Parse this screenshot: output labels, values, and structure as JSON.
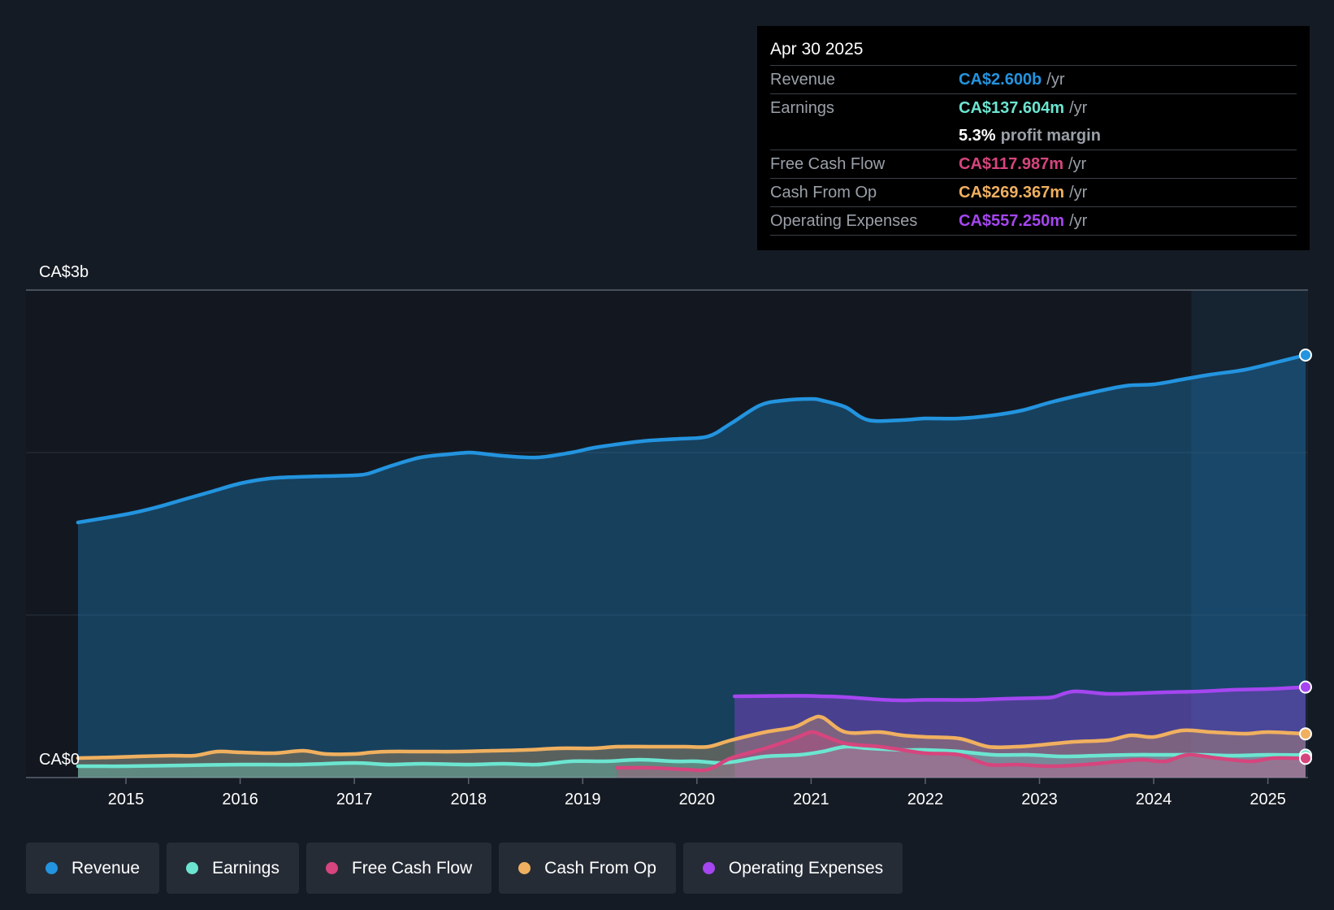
{
  "tooltip": {
    "date": "Apr 30 2025",
    "unit": "/yr",
    "rows": {
      "revenue": {
        "label": "Revenue",
        "value": "CA$2.600b",
        "color": "#2394df"
      },
      "earnings": {
        "label": "Earnings",
        "value": "CA$137.604m",
        "color": "#6ce5d0"
      },
      "margin": {
        "pct": "5.3%",
        "text": "profit margin"
      },
      "fcf": {
        "label": "Free Cash Flow",
        "value": "CA$117.987m",
        "color": "#d6457d"
      },
      "cfo": {
        "label": "Cash From Op",
        "value": "CA$269.367m",
        "color": "#f0b05f"
      },
      "opex": {
        "label": "Operating Expenses",
        "value": "CA$557.250m",
        "color": "#a546f0"
      }
    }
  },
  "legend": [
    {
      "key": "revenue",
      "label": "Revenue",
      "color": "#2394df"
    },
    {
      "key": "earnings",
      "label": "Earnings",
      "color": "#6ce5d0"
    },
    {
      "key": "fcf",
      "label": "Free Cash Flow",
      "color": "#d6457d"
    },
    {
      "key": "cfo",
      "label": "Cash From Op",
      "color": "#f0b05f"
    },
    {
      "key": "opex",
      "label": "Operating Expenses",
      "color": "#a546f0"
    }
  ],
  "chart_data": {
    "type": "area",
    "title": "",
    "xlabel": "",
    "ylabel": "",
    "unit": "CA$b",
    "ylim": [
      0,
      3
    ],
    "xlim": [
      2014.58,
      2025.33
    ],
    "y_tick_labels": [
      {
        "value": 3,
        "label": "CA$3b"
      },
      {
        "value": 0,
        "label": "CA$0"
      }
    ],
    "gridlines": [
      0,
      1,
      2,
      3
    ],
    "x_ticks": [
      2015,
      2016,
      2017,
      2018,
      2019,
      2020,
      2021,
      2022,
      2023,
      2024,
      2025
    ],
    "forecast_start": 2024.33,
    "series": [
      {
        "key": "revenue",
        "name": "Revenue",
        "color": "#2394df",
        "fill": true,
        "x": [
          2014.58,
          2015.0,
          2015.25,
          2015.5,
          2015.75,
          2016.0,
          2016.25,
          2016.5,
          2016.75,
          2017.0,
          2017.12,
          2017.33,
          2017.58,
          2017.83,
          2018.0,
          2018.1,
          2018.3,
          2018.6,
          2018.9,
          2019.1,
          2019.4,
          2019.6,
          2019.85,
          2020.1,
          2020.3,
          2020.55,
          2020.75,
          2021.0,
          2021.1,
          2021.3,
          2021.5,
          2021.8,
          2022.0,
          2022.3,
          2022.6,
          2022.85,
          2023.1,
          2023.4,
          2023.75,
          2024.0,
          2024.25,
          2024.5,
          2024.8,
          2025.1,
          2025.33
        ],
        "y": [
          1.57,
          1.62,
          1.66,
          1.71,
          1.76,
          1.81,
          1.84,
          1.85,
          1.855,
          1.86,
          1.87,
          1.92,
          1.97,
          1.99,
          2.0,
          1.995,
          1.98,
          1.97,
          2.0,
          2.03,
          2.06,
          2.075,
          2.085,
          2.1,
          2.18,
          2.29,
          2.32,
          2.33,
          2.32,
          2.28,
          2.2,
          2.2,
          2.21,
          2.21,
          2.23,
          2.26,
          2.31,
          2.36,
          2.41,
          2.42,
          2.45,
          2.48,
          2.51,
          2.56,
          2.6
        ]
      },
      {
        "key": "opex",
        "name": "Operating Expenses",
        "color": "#a546f0",
        "fill": true,
        "x": [
          2020.33,
          2020.6,
          2020.9,
          2021.1,
          2021.3,
          2021.6,
          2021.8,
          2022.0,
          2022.4,
          2022.7,
          2023.0,
          2023.12,
          2023.3,
          2023.6,
          2023.9,
          2024.1,
          2024.4,
          2024.7,
          2025.0,
          2025.33
        ],
        "y": [
          0.5,
          0.502,
          0.503,
          0.5,
          0.495,
          0.48,
          0.475,
          0.478,
          0.478,
          0.485,
          0.49,
          0.495,
          0.53,
          0.515,
          0.52,
          0.525,
          0.53,
          0.54,
          0.545,
          0.557
        ]
      },
      {
        "key": "cfo",
        "name": "Cash From Op",
        "color": "#f0b05f",
        "fill": true,
        "x": [
          2014.58,
          2014.9,
          2015.1,
          2015.4,
          2015.6,
          2015.8,
          2016.0,
          2016.3,
          2016.55,
          2016.75,
          2017.0,
          2017.15,
          2017.3,
          2017.6,
          2017.9,
          2018.2,
          2018.5,
          2018.8,
          2019.1,
          2019.3,
          2019.6,
          2019.9,
          2020.1,
          2020.3,
          2020.6,
          2020.85,
          2021.0,
          2021.1,
          2021.3,
          2021.6,
          2021.8,
          2022.0,
          2022.3,
          2022.55,
          2022.8,
          2023.0,
          2023.3,
          2023.6,
          2023.8,
          2024.0,
          2024.25,
          2024.5,
          2024.8,
          2025.0,
          2025.33
        ],
        "y": [
          0.12,
          0.125,
          0.13,
          0.135,
          0.135,
          0.16,
          0.155,
          0.15,
          0.165,
          0.145,
          0.145,
          0.155,
          0.16,
          0.16,
          0.16,
          0.165,
          0.17,
          0.18,
          0.18,
          0.19,
          0.19,
          0.19,
          0.19,
          0.23,
          0.28,
          0.31,
          0.36,
          0.37,
          0.28,
          0.28,
          0.26,
          0.25,
          0.24,
          0.19,
          0.19,
          0.2,
          0.22,
          0.23,
          0.26,
          0.25,
          0.29,
          0.28,
          0.27,
          0.28,
          0.269
        ]
      },
      {
        "key": "earnings",
        "name": "Earnings",
        "color": "#6ce5d0",
        "fill": true,
        "x": [
          2014.58,
          2015.0,
          2015.5,
          2016.0,
          2016.5,
          2017.0,
          2017.3,
          2017.6,
          2018.0,
          2018.3,
          2018.6,
          2018.9,
          2019.2,
          2019.5,
          2019.8,
          2020.0,
          2020.2,
          2020.35,
          2020.6,
          2020.9,
          2021.1,
          2021.3,
          2021.5,
          2021.8,
          2022.0,
          2022.3,
          2022.6,
          2022.9,
          2023.2,
          2023.5,
          2023.8,
          2024.1,
          2024.4,
          2024.7,
          2025.0,
          2025.33
        ],
        "y": [
          0.07,
          0.07,
          0.075,
          0.08,
          0.08,
          0.09,
          0.08,
          0.085,
          0.08,
          0.085,
          0.08,
          0.1,
          0.1,
          0.11,
          0.1,
          0.1,
          0.09,
          0.1,
          0.13,
          0.14,
          0.16,
          0.19,
          0.18,
          0.17,
          0.17,
          0.16,
          0.14,
          0.14,
          0.13,
          0.135,
          0.14,
          0.14,
          0.14,
          0.135,
          0.14,
          0.138
        ]
      },
      {
        "key": "fcf",
        "name": "Free Cash Flow",
        "color": "#d6457d",
        "fill": true,
        "x": [
          2019.3,
          2019.6,
          2019.9,
          2020.1,
          2020.3,
          2020.6,
          2020.85,
          2021.0,
          2021.1,
          2021.3,
          2021.6,
          2021.8,
          2022.0,
          2022.3,
          2022.55,
          2022.8,
          2023.1,
          2023.4,
          2023.7,
          2023.9,
          2024.1,
          2024.3,
          2024.55,
          2024.85,
          2025.05,
          2025.33
        ],
        "y": [
          0.06,
          0.06,
          0.05,
          0.05,
          0.12,
          0.18,
          0.24,
          0.28,
          0.26,
          0.21,
          0.19,
          0.17,
          0.15,
          0.14,
          0.08,
          0.08,
          0.07,
          0.08,
          0.1,
          0.11,
          0.1,
          0.14,
          0.12,
          0.1,
          0.12,
          0.118
        ]
      }
    ]
  }
}
